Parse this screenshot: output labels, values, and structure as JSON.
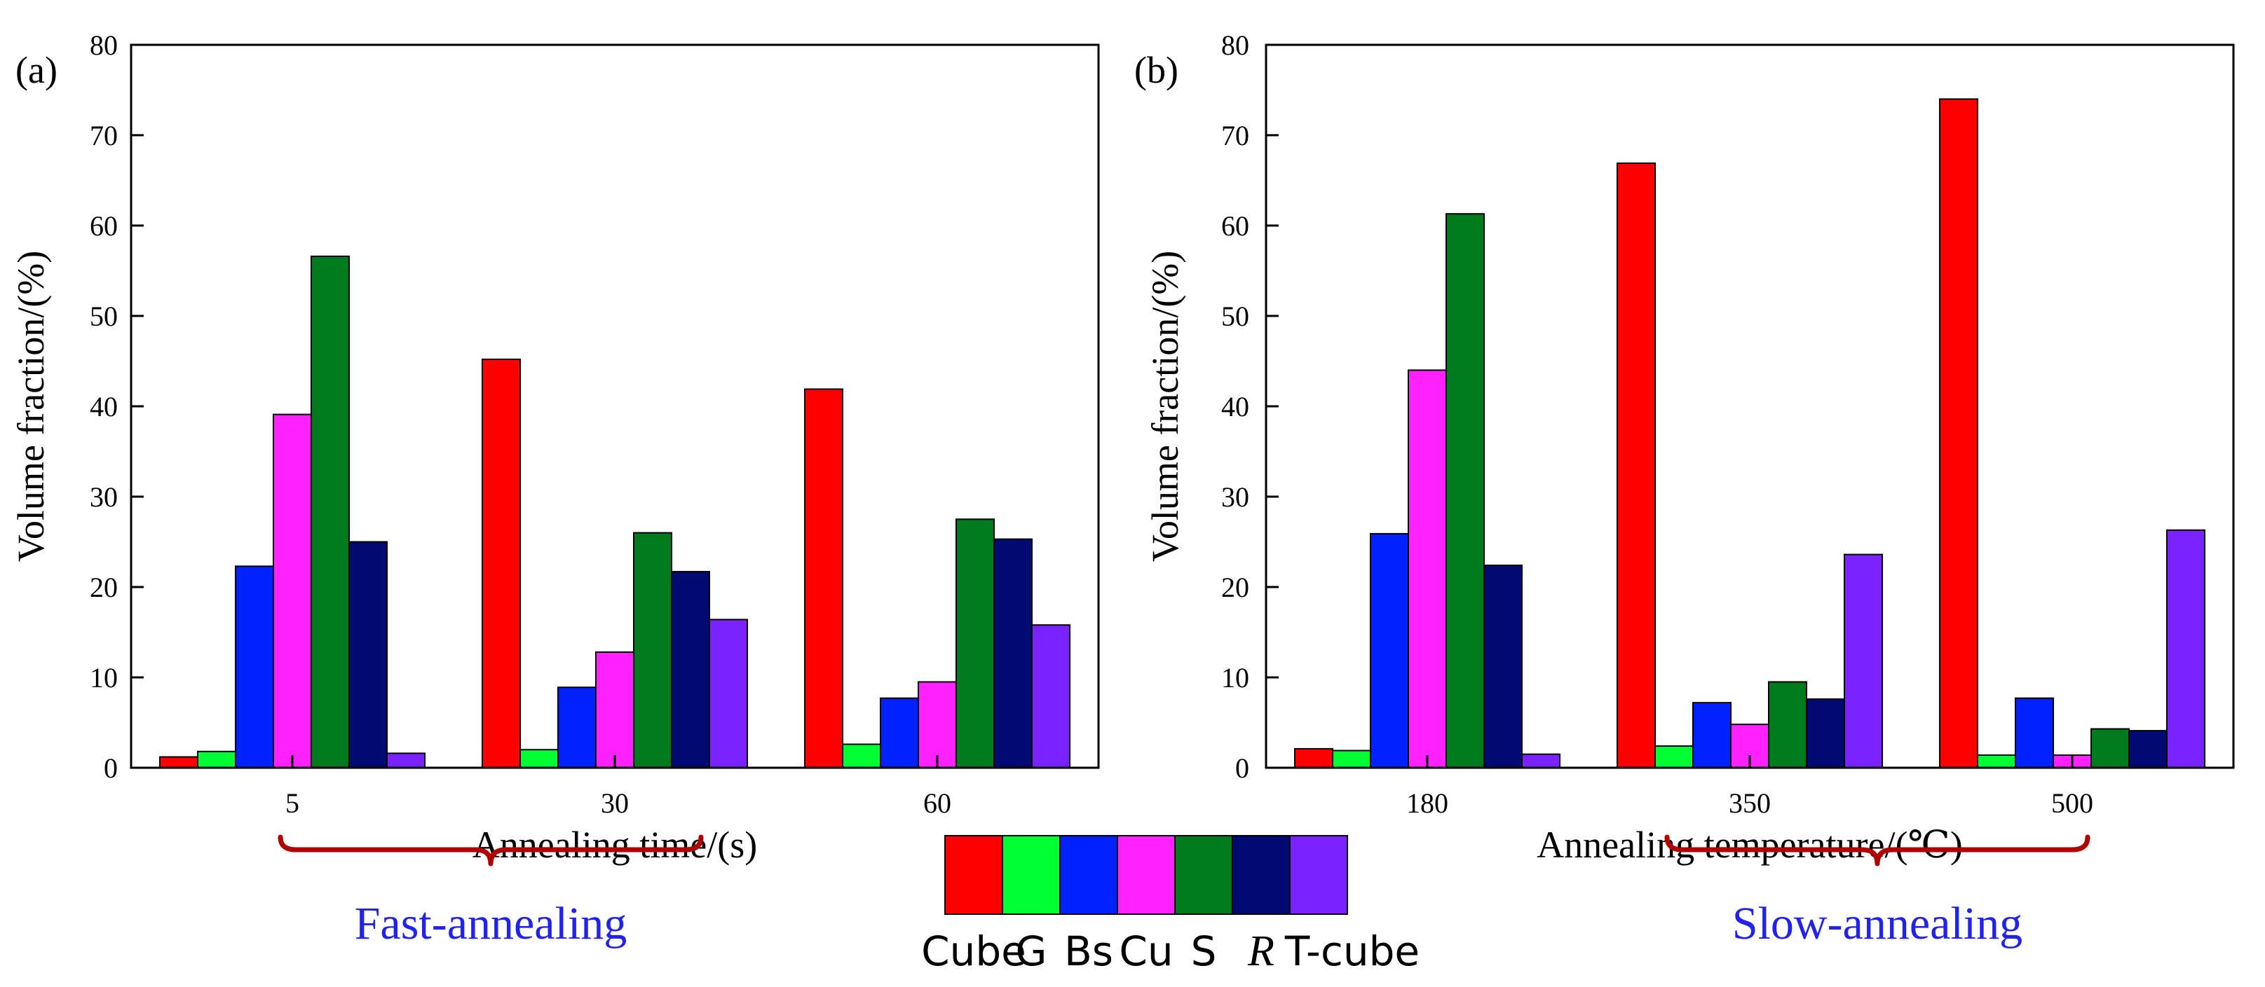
{
  "legend": {
    "items": [
      {
        "label": "Cube",
        "color": "#ff0000"
      },
      {
        "label": "G",
        "color": "#00ff33"
      },
      {
        "label": "Bs",
        "color": "#0022ff"
      },
      {
        "label": "Cu",
        "color": "#ff22ff"
      },
      {
        "label": "S",
        "color": "#007a1c"
      },
      {
        "label": "R",
        "color": "#000a70",
        "italic": true
      },
      {
        "label": "T-cube",
        "color": "#7a22ff"
      }
    ]
  },
  "chart_data": [
    {
      "type": "bar",
      "panel_label": "(a)",
      "xlabel": "Annealing time/(s)",
      "ylabel": "Volume fraction/(%)",
      "ylim": [
        0,
        80
      ],
      "yticks": [
        0,
        10,
        20,
        30,
        40,
        50,
        60,
        70,
        80
      ],
      "categories": [
        "5",
        "30",
        "60"
      ],
      "group_label": "Fast-annealing",
      "series": [
        {
          "name": "Cube",
          "values": [
            1.2,
            45.2,
            41.9
          ]
        },
        {
          "name": "G",
          "values": [
            1.8,
            2.0,
            2.6
          ]
        },
        {
          "name": "Bs",
          "values": [
            22.3,
            8.9,
            7.7
          ]
        },
        {
          "name": "Cu",
          "values": [
            39.1,
            12.8,
            9.5
          ]
        },
        {
          "name": "S",
          "values": [
            56.6,
            26.0,
            27.5
          ]
        },
        {
          "name": "R",
          "values": [
            25.0,
            21.7,
            25.3
          ]
        },
        {
          "name": "T-cube",
          "values": [
            1.6,
            16.4,
            15.8
          ]
        }
      ]
    },
    {
      "type": "bar",
      "panel_label": "(b)",
      "xlabel": "Annealing temperature/(℃)",
      "ylabel": "Volume fraction/(%)",
      "ylim": [
        0,
        80
      ],
      "yticks": [
        0,
        10,
        20,
        30,
        40,
        50,
        60,
        70,
        80
      ],
      "categories": [
        "180",
        "350",
        "500"
      ],
      "group_label": "Slow-annealing",
      "series": [
        {
          "name": "Cube",
          "values": [
            2.1,
            66.9,
            74.0
          ]
        },
        {
          "name": "G",
          "values": [
            1.9,
            2.4,
            1.4
          ]
        },
        {
          "name": "Bs",
          "values": [
            25.9,
            7.2,
            7.7
          ]
        },
        {
          "name": "Cu",
          "values": [
            44.0,
            4.8,
            1.4
          ]
        },
        {
          "name": "S",
          "values": [
            61.3,
            9.5,
            4.3
          ]
        },
        {
          "name": "R",
          "values": [
            22.4,
            7.6,
            4.1
          ]
        },
        {
          "name": "T-cube",
          "values": [
            1.5,
            23.6,
            26.3
          ]
        }
      ]
    }
  ]
}
